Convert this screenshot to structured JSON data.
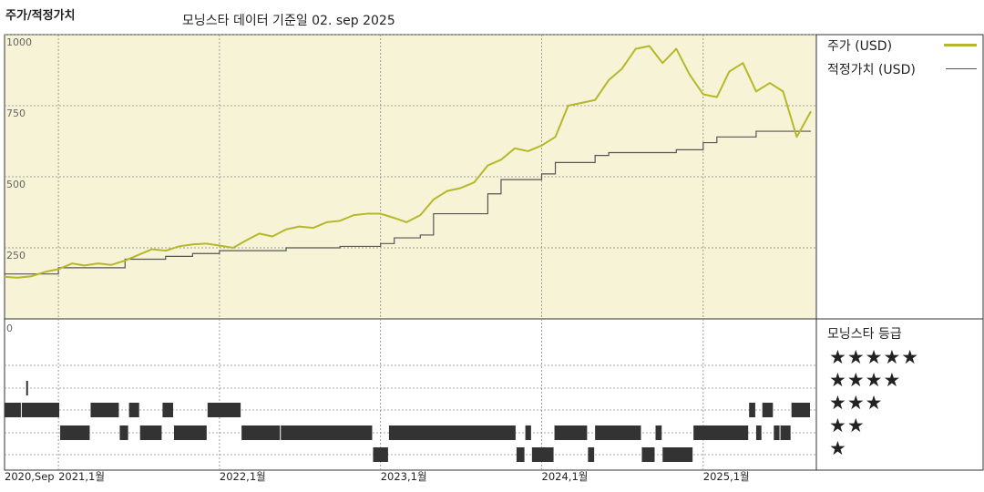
{
  "header": {
    "title": "주가/적정가치",
    "subtitle": "모닝스타 데이터 기준일 02. sep 2025"
  },
  "legend": {
    "price_label": "주가 (USD)",
    "fair_value_label": "적정가치 (USD)",
    "rating_title": "모닝스타 등급",
    "star_rows": [
      "★★★★★",
      "★★★★",
      "★★★",
      "★★",
      "★"
    ]
  },
  "colors": {
    "price": "#b5b82a",
    "fair_value": "#555555",
    "panel_bg": "#f7f3d6",
    "grid": "#888888",
    "rating_bar": "#333333"
  },
  "chart_data": [
    {
      "type": "line",
      "title": "주가/적정가치",
      "ylim": [
        0,
        1000
      ],
      "y_ticks": [
        "1000",
        "750",
        "500",
        "250"
      ],
      "y_tick_values": [
        1000,
        750,
        500,
        250
      ],
      "x_tick_labels": [
        "2020,Sep",
        "2021,1월",
        "2022,1월",
        "2023,1월",
        "2024,1월",
        "2025,1월"
      ],
      "x_tick_dates": [
        "2020-09-01",
        "2021-01-01",
        "2022-01-01",
        "2023-01-01",
        "2024-01-01",
        "2025-01-01"
      ],
      "x_range": [
        "2020-09-01",
        "2025-09-02"
      ],
      "grid": true,
      "series": [
        {
          "name": "주가 (USD)",
          "points": [
            [
              "2020-09-01",
              148
            ],
            [
              "2020-10-01",
              145
            ],
            [
              "2020-11-01",
              150
            ],
            [
              "2020-12-01",
              165
            ],
            [
              "2021-01-01",
              175
            ],
            [
              "2021-02-01",
              195
            ],
            [
              "2021-03-01",
              188
            ],
            [
              "2021-04-01",
              195
            ],
            [
              "2021-05-01",
              190
            ],
            [
              "2021-06-01",
              205
            ],
            [
              "2021-07-01",
              225
            ],
            [
              "2021-08-01",
              245
            ],
            [
              "2021-09-01",
              240
            ],
            [
              "2021-10-01",
              255
            ],
            [
              "2021-11-01",
              262
            ],
            [
              "2021-12-01",
              265
            ],
            [
              "2022-01-01",
              258
            ],
            [
              "2022-02-01",
              250
            ],
            [
              "2022-03-01",
              275
            ],
            [
              "2022-04-01",
              300
            ],
            [
              "2022-05-01",
              290
            ],
            [
              "2022-06-01",
              315
            ],
            [
              "2022-07-01",
              325
            ],
            [
              "2022-08-01",
              320
            ],
            [
              "2022-09-01",
              340
            ],
            [
              "2022-10-01",
              345
            ],
            [
              "2022-11-01",
              365
            ],
            [
              "2022-12-01",
              370
            ],
            [
              "2023-01-01",
              370
            ],
            [
              "2023-02-01",
              355
            ],
            [
              "2023-03-01",
              340
            ],
            [
              "2023-04-01",
              365
            ],
            [
              "2023-05-01",
              420
            ],
            [
              "2023-06-01",
              450
            ],
            [
              "2023-07-01",
              460
            ],
            [
              "2023-08-01",
              480
            ],
            [
              "2023-09-01",
              540
            ],
            [
              "2023-10-01",
              560
            ],
            [
              "2023-11-01",
              600
            ],
            [
              "2023-12-01",
              590
            ],
            [
              "2024-01-01",
              610
            ],
            [
              "2024-02-01",
              640
            ],
            [
              "2024-03-01",
              750
            ],
            [
              "2024-04-01",
              760
            ],
            [
              "2024-05-01",
              770
            ],
            [
              "2024-06-01",
              840
            ],
            [
              "2024-07-01",
              880
            ],
            [
              "2024-08-01",
              950
            ],
            [
              "2024-09-01",
              960
            ],
            [
              "2024-10-01",
              900
            ],
            [
              "2024-11-01",
              950
            ],
            [
              "2024-12-01",
              860
            ],
            [
              "2025-01-01",
              790
            ],
            [
              "2025-02-01",
              780
            ],
            [
              "2025-03-01",
              870
            ],
            [
              "2025-04-01",
              900
            ],
            [
              "2025-05-01",
              800
            ],
            [
              "2025-06-01",
              830
            ],
            [
              "2025-07-01",
              800
            ],
            [
              "2025-08-01",
              640
            ],
            [
              "2025-09-02",
              730
            ]
          ]
        },
        {
          "name": "적정가치 (USD)",
          "points": [
            [
              "2020-09-01",
              158
            ],
            [
              "2021-01-01",
              180
            ],
            [
              "2021-06-01",
              210
            ],
            [
              "2021-09-01",
              220
            ],
            [
              "2021-11-01",
              230
            ],
            [
              "2022-01-01",
              240
            ],
            [
              "2022-06-01",
              250
            ],
            [
              "2022-10-01",
              255
            ],
            [
              "2023-01-01",
              265
            ],
            [
              "2023-02-01",
              285
            ],
            [
              "2023-04-01",
              295
            ],
            [
              "2023-05-01",
              370
            ],
            [
              "2023-09-01",
              440
            ],
            [
              "2023-10-01",
              490
            ],
            [
              "2024-01-01",
              510
            ],
            [
              "2024-02-01",
              550
            ],
            [
              "2024-05-01",
              575
            ],
            [
              "2024-06-01",
              585
            ],
            [
              "2024-11-01",
              595
            ],
            [
              "2025-01-01",
              620
            ],
            [
              "2025-02-01",
              640
            ],
            [
              "2025-05-01",
              660
            ],
            [
              "2025-09-02",
              660
            ]
          ]
        }
      ]
    },
    {
      "type": "bar",
      "title": "모닝스타 등급",
      "y_ticks": [
        "0"
      ],
      "levels": [
        5,
        4,
        3,
        2,
        1
      ],
      "rating_periods": [
        [
          "2020-10-20",
          "2020-10-26",
          4
        ],
        [
          "2020-09-01",
          "2020-10-10",
          3
        ],
        [
          "2020-10-10",
          "2021-01-05",
          3
        ],
        [
          "2021-01-05",
          "2021-03-15",
          2
        ],
        [
          "2021-03-15",
          "2021-05-20",
          3
        ],
        [
          "2021-05-20",
          "2021-06-10",
          2
        ],
        [
          "2021-06-10",
          "2021-07-05",
          3
        ],
        [
          "2021-07-05",
          "2021-08-25",
          2
        ],
        [
          "2021-08-25",
          "2021-09-20",
          3
        ],
        [
          "2021-09-20",
          "2021-12-05",
          2
        ],
        [
          "2021-12-05",
          "2022-02-20",
          3
        ],
        [
          "2022-02-20",
          "2022-05-20",
          2
        ],
        [
          "2022-05-20",
          "2022-12-15",
          2
        ],
        [
          "2022-12-15",
          "2023-01-20",
          1
        ],
        [
          "2023-01-20",
          "2023-11-05",
          2
        ],
        [
          "2023-11-05",
          "2023-11-25",
          1
        ],
        [
          "2023-11-25",
          "2023-12-10",
          2
        ],
        [
          "2023-12-10",
          "2024-01-30",
          1
        ],
        [
          "2024-01-30",
          "2024-04-15",
          2
        ],
        [
          "2024-04-15",
          "2024-05-01",
          1
        ],
        [
          "2024-05-01",
          "2024-08-15",
          2
        ],
        [
          "2024-08-15",
          "2024-09-15",
          1
        ],
        [
          "2024-09-15",
          "2024-10-01",
          2
        ],
        [
          "2024-10-01",
          "2024-12-10",
          1
        ],
        [
          "2024-12-10",
          "2025-04-15",
          2
        ],
        [
          "2025-04-15",
          "2025-05-01",
          3
        ],
        [
          "2025-05-01",
          "2025-05-15",
          2
        ],
        [
          "2025-05-15",
          "2025-06-10",
          3
        ],
        [
          "2025-06-10",
          "2025-06-25",
          2
        ],
        [
          "2025-06-25",
          "2025-07-20",
          2
        ],
        [
          "2025-07-20",
          "2025-09-02",
          3
        ]
      ]
    }
  ]
}
